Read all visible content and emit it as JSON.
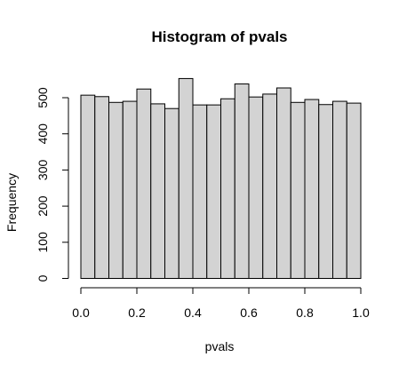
{
  "chart_data": {
    "type": "bar",
    "title": "Histogram of pvals",
    "xlabel": "pvals",
    "ylabel": "Frequency",
    "bin_edges": [
      0.0,
      0.05,
      0.1,
      0.15,
      0.2,
      0.25,
      0.3,
      0.35,
      0.4,
      0.45,
      0.5,
      0.55,
      0.6,
      0.65,
      0.7,
      0.75,
      0.8,
      0.85,
      0.9,
      0.95,
      1.0
    ],
    "values": [
      507,
      503,
      487,
      490,
      524,
      483,
      470,
      553,
      480,
      480,
      497,
      538,
      502,
      510,
      527,
      487,
      495,
      481,
      490,
      485
    ],
    "xlim": [
      0,
      1
    ],
    "ylim": [
      0,
      553
    ],
    "x_ticks": [
      "0.0",
      "0.2",
      "0.4",
      "0.6",
      "0.8",
      "1.0"
    ],
    "y_ticks": [
      "0",
      "100",
      "200",
      "300",
      "400",
      "500"
    ],
    "bar_color": "#d3d3d3",
    "grid": false
  }
}
